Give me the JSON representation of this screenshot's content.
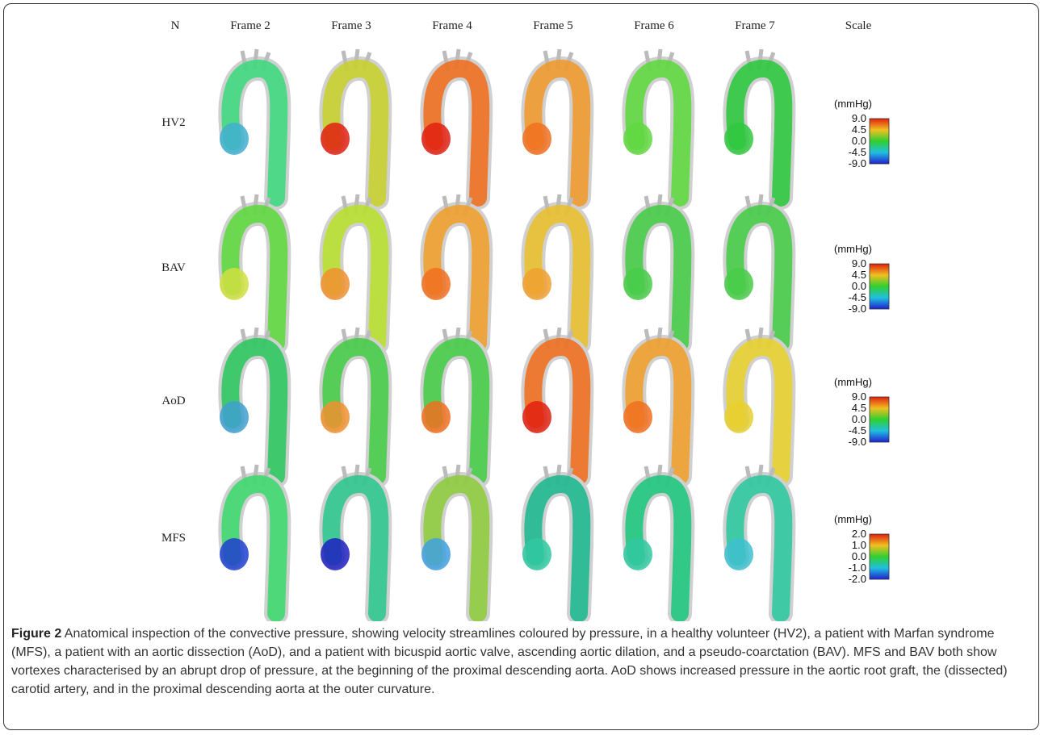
{
  "header": {
    "row_label": "N",
    "frames": [
      "Frame 2",
      "Frame 3",
      "Frame 4",
      "Frame 5",
      "Frame 6",
      "Frame 7"
    ],
    "scale": "Scale"
  },
  "rows": [
    {
      "label": "HV2",
      "unit": "(mmHg)",
      "ticks": [
        "9.0",
        "4.5",
        "0.0",
        "-4.5",
        "-9.0"
      ]
    },
    {
      "label": "BAV",
      "unit": "(mmHg)",
      "ticks": [
        "9.0",
        "4.5",
        "0.0",
        "-4.5",
        "-9.0"
      ]
    },
    {
      "label": "AoD",
      "unit": "(mmHg)",
      "ticks": [
        "9.0",
        "4.5",
        "0.0",
        "-4.5",
        "-9.0"
      ]
    },
    {
      "label": "MFS",
      "unit": "(mmHg)",
      "ticks": [
        "2.0",
        "1.0",
        "0.0",
        "-1.0",
        "-2.0"
      ]
    }
  ],
  "caption": {
    "label": "Figure 2",
    "text": "Anatomical inspection of the convective pressure, showing velocity streamlines coloured by pressure, in a healthy volunteer (HV2), a patient with Marfan syndrome (MFS), a patient with an aortic dissection (AoD), and a patient with bicuspid aortic valve, ascending aortic dilation, and a pseudo-coarctation (BAV). MFS and BAV both show vortexes characterised by an abrupt drop of pressure, at the beginning of the proximal descending aorta. AoD shows increased pressure in the aortic root graft, the (dissected) carotid artery, and in the proximal descending aorta at the outer curvature."
  }
}
